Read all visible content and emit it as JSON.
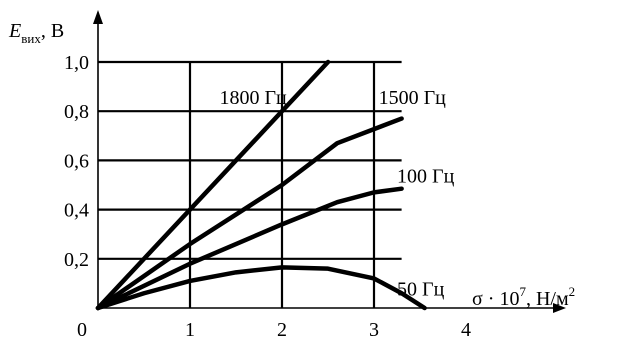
{
  "chart_data": {
    "type": "line",
    "title": "",
    "ylabel": {
      "symbol": "E",
      "sub": "вих",
      "unit": ", В"
    },
    "xlabel": {
      "prefix": "σ · 10",
      "sup": "7",
      "unit": ", Н/м",
      "sup2": "2"
    },
    "xlim": [
      0,
      4
    ],
    "ylim": [
      0,
      1.0
    ],
    "x_ticks": [
      "0",
      "1",
      "2",
      "3",
      "4"
    ],
    "y_ticks": [
      "0,2",
      "0,4",
      "0,6",
      "0,8",
      "1,0"
    ],
    "grid": true,
    "series": [
      {
        "name": "1800 Гц",
        "x": [
          0,
          2.5
        ],
        "y": [
          0,
          1.0
        ]
      },
      {
        "name": "1500 Гц",
        "x": [
          0,
          1,
          2,
          2.6,
          3.3
        ],
        "y": [
          0,
          0.26,
          0.5,
          0.67,
          0.77
        ]
      },
      {
        "name": "100 Гц",
        "x": [
          0,
          1,
          2,
          2.6,
          3.0,
          3.3
        ],
        "y": [
          0,
          0.18,
          0.34,
          0.43,
          0.47,
          0.485
        ]
      },
      {
        "name": "50 Гц",
        "x": [
          0,
          0.5,
          1,
          1.5,
          2,
          2.5,
          3,
          3.3,
          3.55
        ],
        "y": [
          0,
          0.06,
          0.11,
          0.145,
          0.165,
          0.16,
          0.12,
          0.06,
          0
        ]
      }
    ]
  }
}
